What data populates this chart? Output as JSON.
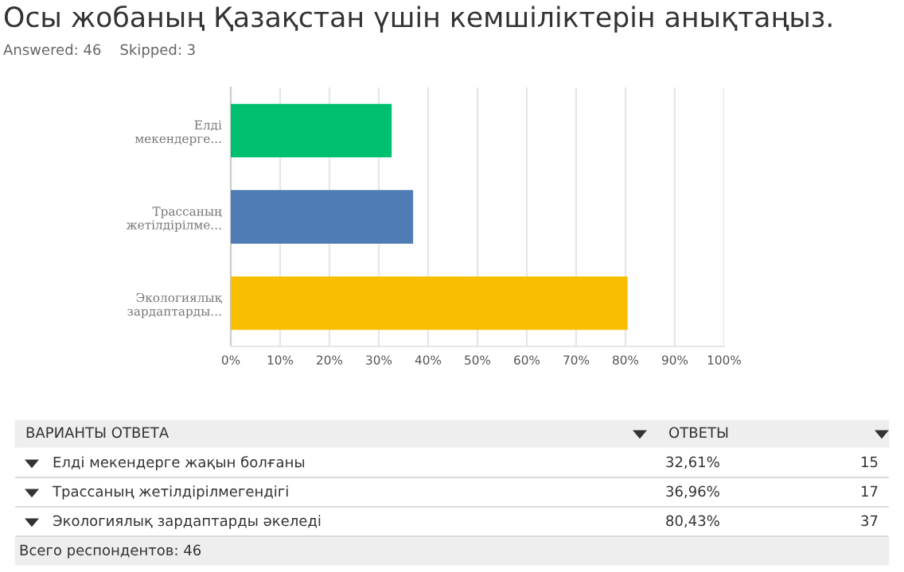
{
  "chart_data": {
    "type": "bar",
    "orientation": "horizontal",
    "title": "Осы жобаның Қазақстан үшін кемшіліктерін анықтаңыз.",
    "subtitle": "Answered: 46    Skipped: 3",
    "categories": [
      "Елді\nмекендерге...",
      "Трассаның\nжетілдірілме...",
      "Экологиялық\nзардаптарды..."
    ],
    "values": [
      32.61,
      36.96,
      80.43
    ],
    "colors": [
      "#00bf6f",
      "#507cb6",
      "#f9be00"
    ],
    "xlim": [
      0,
      100
    ],
    "xticks": [
      {
        "value": 0,
        "label": "0%"
      },
      {
        "value": 10,
        "label": "10%"
      },
      {
        "value": 20,
        "label": "20%"
      },
      {
        "value": 30,
        "label": "30%"
      },
      {
        "value": 40,
        "label": "40%"
      },
      {
        "value": 50,
        "label": "50%"
      },
      {
        "value": 60,
        "label": "60%"
      },
      {
        "value": 70,
        "label": "70%"
      },
      {
        "value": 80,
        "label": "80%"
      },
      {
        "value": 90,
        "label": "90%"
      },
      {
        "value": 100,
        "label": "100%"
      }
    ],
    "grid": "x",
    "annotations": [
      "ВАРИАНТЫ ОТВЕТА",
      "ОТВЕТЫ",
      "Елді мекендерге жақын болғаны",
      "32,61%",
      "15",
      "Трассаның жетілдірілмегендігі",
      "36,96%",
      "17",
      "Экологиялық зардаптарды әкеледі",
      "80,43%",
      "37",
      "Всего респондентов: 46"
    ]
  }
}
